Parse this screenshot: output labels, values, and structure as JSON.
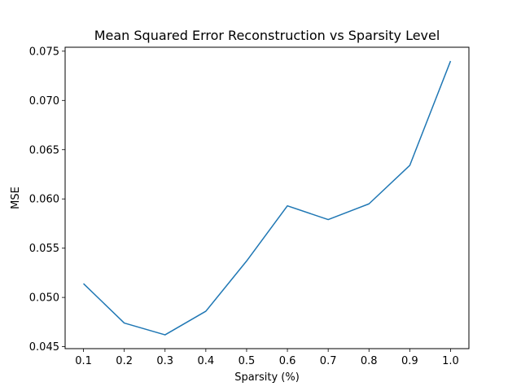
{
  "chart_data": {
    "type": "line",
    "title": "Mean Squared Error Reconstruction vs Sparsity Level",
    "xlabel": "Sparsity (%)",
    "ylabel": "MSE",
    "x": [
      0.1,
      0.2,
      0.3,
      0.4,
      0.5,
      0.6,
      0.7,
      0.8,
      0.9,
      1.0
    ],
    "series": [
      {
        "values": [
          0.0514,
          0.0474,
          0.0462,
          0.0486,
          0.0537,
          0.0593,
          0.0579,
          0.0595,
          0.0634,
          0.074
        ],
        "color": "#1f77b4"
      }
    ],
    "xlim": [
      0.055,
      1.045
    ],
    "ylim": [
      0.0448,
      0.0754
    ],
    "xticks": [
      "0.1",
      "0.2",
      "0.3",
      "0.4",
      "0.5",
      "0.6",
      "0.7",
      "0.8",
      "0.9",
      "1.0"
    ],
    "yticks": [
      "0.045",
      "0.050",
      "0.055",
      "0.060",
      "0.065",
      "0.070",
      "0.075"
    ],
    "grid": false,
    "legend": "none"
  }
}
